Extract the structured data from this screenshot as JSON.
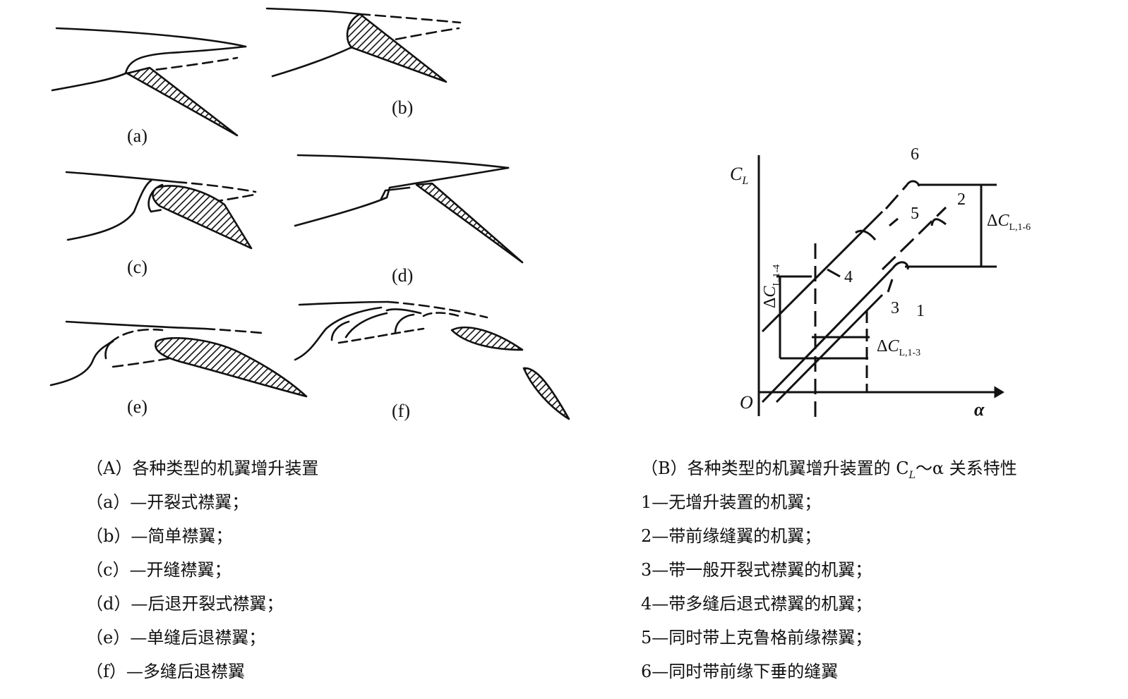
{
  "left_figure": {
    "sub_labels": [
      "(a)",
      "(b)",
      "(c)",
      "(d)",
      "(e)",
      "(f)"
    ]
  },
  "right_figure": {
    "y_axis_label": "C",
    "y_axis_sub": "L",
    "x_axis_label": "α",
    "origin_label": "O",
    "curve_labels": [
      "1",
      "2",
      "3",
      "4",
      "5",
      "6"
    ],
    "delta_1_4": {
      "prefix": "Δ",
      "var": "C",
      "sub": "L,1-4"
    },
    "delta_1_6": {
      "prefix": "Δ",
      "var": "C",
      "sub": "L,1-6"
    },
    "delta_1_3": {
      "prefix": "Δ",
      "var": "C",
      "sub": "L,1-3"
    }
  },
  "caption_A": {
    "title": "（A）各种类型的机翼增升装置",
    "items": [
      "（a）—开裂式襟翼；",
      "（b）—简单襟翼；",
      "（c）—开缝襟翼；",
      "（d）—后退开裂式襟翼；",
      "（e）—单缝后退襟翼；",
      "（f）—多缝后退襟翼"
    ]
  },
  "caption_B": {
    "title": "（B）各种类型的机翼增升装置的 C",
    "title_sub": "L",
    "title_tail": "～α 关系特性",
    "items": [
      "1—无增升装置的机翼；",
      "2—带前缘缝翼的机翼；",
      "3—带一般开裂式襟翼的机翼；",
      "4—带多缝后退式襟翼的机翼；",
      "5—同时带上克鲁格前缘襟翼；",
      "6—同时带前缘下垂的缝翼"
    ]
  }
}
